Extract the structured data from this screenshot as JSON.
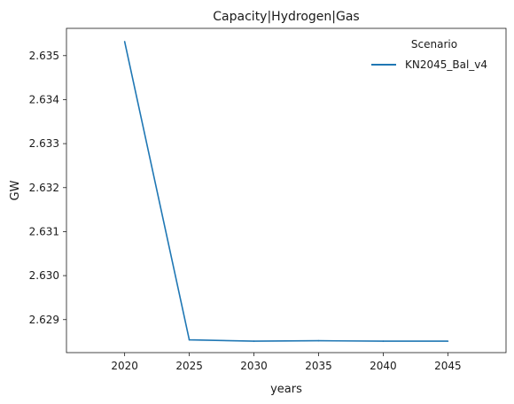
{
  "chart_data": {
    "type": "line",
    "title": "Capacity|Hydrogen|Gas",
    "xlabel": "years",
    "ylabel": "GW",
    "x": [
      2020,
      2025,
      2030,
      2035,
      2040,
      2045
    ],
    "xticks": [
      "2020",
      "2025",
      "2030",
      "2035",
      "2040",
      "2045"
    ],
    "yticks": [
      "2.629",
      "2.630",
      "2.631",
      "2.632",
      "2.633",
      "2.634",
      "2.635"
    ],
    "ylim": [
      2.62825,
      2.63562
    ],
    "grid": false,
    "legend": {
      "title": "Scenario",
      "placement": "top-right"
    },
    "series": [
      {
        "name": "KN2045_Bal_v4",
        "color": "#1f77b4",
        "values": [
          2.63532,
          2.62854,
          2.62851,
          2.62852,
          2.62851,
          2.62851
        ]
      }
    ]
  }
}
